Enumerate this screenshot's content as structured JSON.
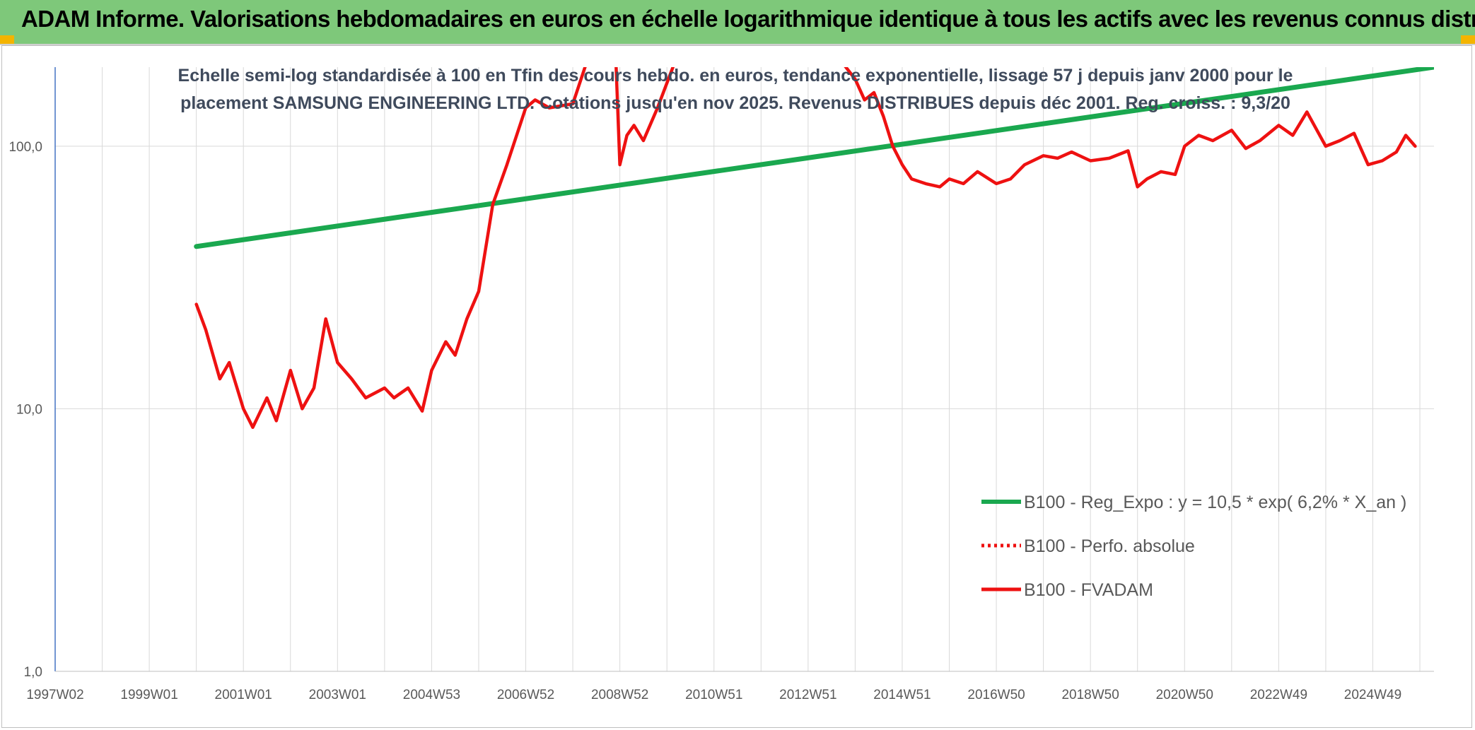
{
  "header": {
    "title": "ADAM Informe. Valorisations hebdomadaires en euros en échelle logarithmique identique à tous les actifs avec les revenus connus distribués"
  },
  "colors": {
    "banner": "#7ec87a",
    "regression": "#1aa84f",
    "fvadam": "#ee1111",
    "perfo": "#ee1111",
    "grid": "#d9d9d9",
    "corner_accent": "#f4b400"
  },
  "chart_data": {
    "type": "line",
    "title": "Echelle semi-log standardisée à 100 en Tfin des cours hebdo. en euros, tendance exponentielle, lissage 57 j depuis janv 2000 pour le placement SAMSUNG ENGINEERING LTD. Cotations jusqu'en nov 2025. Revenus DISTRIBUES depuis déc 2001. Reg. croiss. : 9,3/20",
    "y_scale": "log",
    "ylim": [
      1,
      200
    ],
    "xlim": [
      1997.0,
      2026.3
    ],
    "grid": true,
    "legend_position": "bottom-right",
    "y_ticks": [
      "1,0",
      "10,0",
      "100,0"
    ],
    "x_ticks": [
      "1997W02",
      "1999W01",
      "2001W01",
      "2003W01",
      "2004W53",
      "2006W52",
      "2008W52",
      "2010W51",
      "2012W51",
      "2014W51",
      "2016W50",
      "2018W50",
      "2020W50",
      "2022W49",
      "2024W49"
    ],
    "series": [
      {
        "name": "B100 - Reg_Expo : y = 10,5 * exp( 6,2% * X_an )",
        "style": "solid-thick",
        "x": [
          2000.0,
          2026.3
        ],
        "y": [
          41.5,
          200
        ]
      },
      {
        "name": "B100 - Perfo. absolue",
        "style": "dotted",
        "x": [],
        "y": []
      },
      {
        "name": "B100 - FVADAM",
        "style": "solid",
        "x": [
          2000.0,
          2000.2,
          2000.5,
          2000.7,
          2001.0,
          2001.2,
          2001.5,
          2001.7,
          2002.0,
          2002.25,
          2002.5,
          2002.75,
          2003.0,
          2003.3,
          2003.6,
          2004.0,
          2004.2,
          2004.5,
          2004.8,
          2005.0,
          2005.3,
          2005.5,
          2005.75,
          2006.0,
          2006.3,
          2006.6,
          2007.0,
          2007.2,
          2007.5,
          2008.0,
          2008.3,
          2008.6,
          2008.9,
          2009.0,
          2009.15,
          2009.3,
          2009.5,
          2009.8,
          2010.5,
          2012.5,
          2014.0,
          2014.2,
          2014.4,
          2014.6,
          2014.8,
          2015.0,
          2015.2,
          2015.5,
          2015.8,
          2016.0,
          2016.3,
          2016.6,
          2017.0,
          2017.3,
          2017.6,
          2018.0,
          2018.3,
          2018.6,
          2019.0,
          2019.4,
          2019.8,
          2020.0,
          2020.2,
          2020.5,
          2020.8,
          2021.0,
          2021.3,
          2021.6,
          2022.0,
          2022.3,
          2022.6,
          2023.0,
          2023.3,
          2023.6,
          2024.0,
          2024.3,
          2024.6,
          2024.9,
          2025.2,
          2025.5,
          2025.7,
          2025.9
        ],
        "y": [
          25,
          20,
          13,
          15,
          10,
          8.5,
          11,
          9,
          14,
          10,
          12,
          22,
          15,
          13,
          11,
          12,
          11,
          12,
          9.8,
          14,
          18,
          16,
          22,
          28,
          60,
          85,
          140,
          150,
          140,
          145,
          210,
          300,
          250,
          85,
          110,
          120,
          105,
          140,
          300,
          400,
          180,
          150,
          160,
          130,
          100,
          85,
          75,
          72,
          70,
          75,
          72,
          80,
          72,
          75,
          85,
          92,
          90,
          95,
          88,
          90,
          96,
          70,
          75,
          80,
          78,
          100,
          110,
          105,
          115,
          98,
          105,
          120,
          110,
          135,
          100,
          105,
          112,
          85,
          88,
          95,
          110,
          100
        ]
      }
    ]
  }
}
